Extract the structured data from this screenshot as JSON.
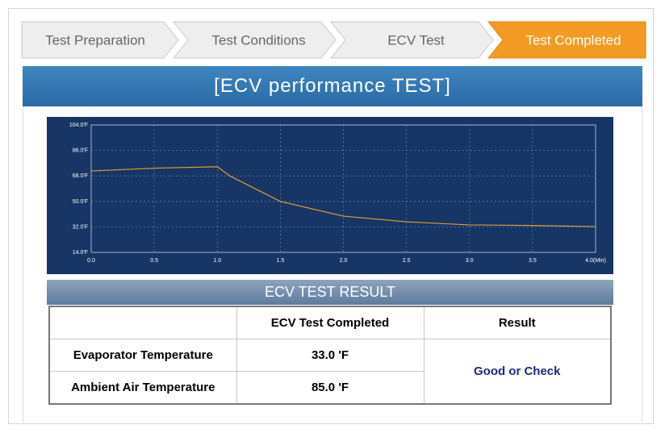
{
  "tabs": [
    "Test Preparation",
    "Test Conditions",
    "ECV Test",
    "Test Completed"
  ],
  "active_tab": 3,
  "header": {
    "title": "[ECV performance TEST]"
  },
  "chart_data": {
    "type": "line",
    "color": "#e0a030",
    "grid": true,
    "x": [
      0,
      0.5,
      1.0,
      1.1,
      1.5,
      2.0,
      2.5,
      3.0,
      3.5,
      4.0
    ],
    "values": [
      71.5,
      73.5,
      74.5,
      68,
      50,
      39.6,
      35.6,
      33.4,
      33,
      32.2
    ],
    "xlim": [
      0,
      4
    ],
    "xticks": [
      {
        "value": 0,
        "label": "0.0"
      },
      {
        "value": 0.5,
        "label": "0.5"
      },
      {
        "value": 1,
        "label": "1.0"
      },
      {
        "value": 1.5,
        "label": "1.5"
      },
      {
        "value": 2,
        "label": "2.0"
      },
      {
        "value": 2.5,
        "label": "2.5"
      },
      {
        "value": 3,
        "label": "3.0"
      },
      {
        "value": 3.5,
        "label": "3.5"
      },
      {
        "value": 4,
        "label": "4.0(Min)"
      }
    ],
    "ylim": [
      14,
      104
    ],
    "yticks": [
      {
        "value": 14,
        "label": "14.0'F"
      },
      {
        "value": 32,
        "label": "32.0'F"
      },
      {
        "value": 50,
        "label": "50.0'F"
      },
      {
        "value": 68,
        "label": "68.0'F"
      },
      {
        "value": 86,
        "label": "86.0'F"
      },
      {
        "value": 104,
        "label": "104.0'F"
      }
    ]
  },
  "result": {
    "title": "ECV TEST RESULT",
    "columns": [
      "ECV Test Completed",
      "Result"
    ],
    "rows": [
      {
        "label": "Evaporator Temperature",
        "value": "33.0 'F"
      },
      {
        "label": "Ambient Air Temperature",
        "value": "85.0 'F"
      }
    ],
    "verdict": "Good or Check"
  }
}
